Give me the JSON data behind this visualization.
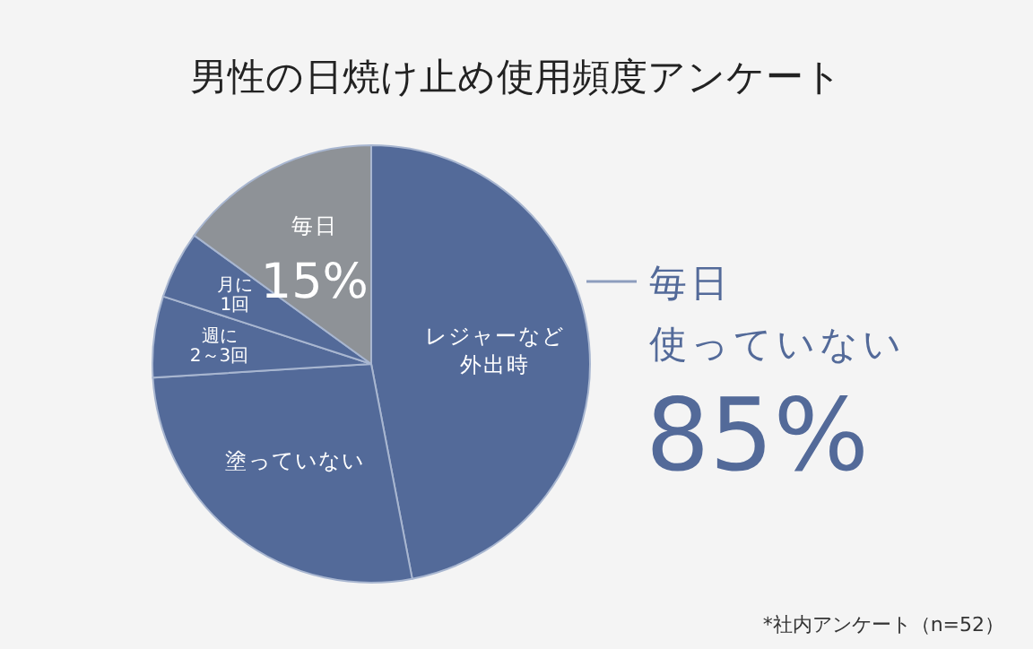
{
  "chart_data": {
    "type": "pie",
    "title": "男性の日焼け止め使用頻度アンケート",
    "categories": [
      "レジャーなど外出時",
      "塗っていない",
      "週に2～3回",
      "月に1回",
      "毎日"
    ],
    "values": [
      47,
      27,
      6,
      5,
      15
    ],
    "colors": [
      "#536a99",
      "#536a99",
      "#536a99",
      "#536a99",
      "#8e9297"
    ],
    "value_labels": [
      null,
      null,
      null,
      null,
      "15%"
    ],
    "annotations": [
      "毎日",
      "使っていない",
      "85%",
      "*社内アンケート（n=52）"
    ]
  }
}
